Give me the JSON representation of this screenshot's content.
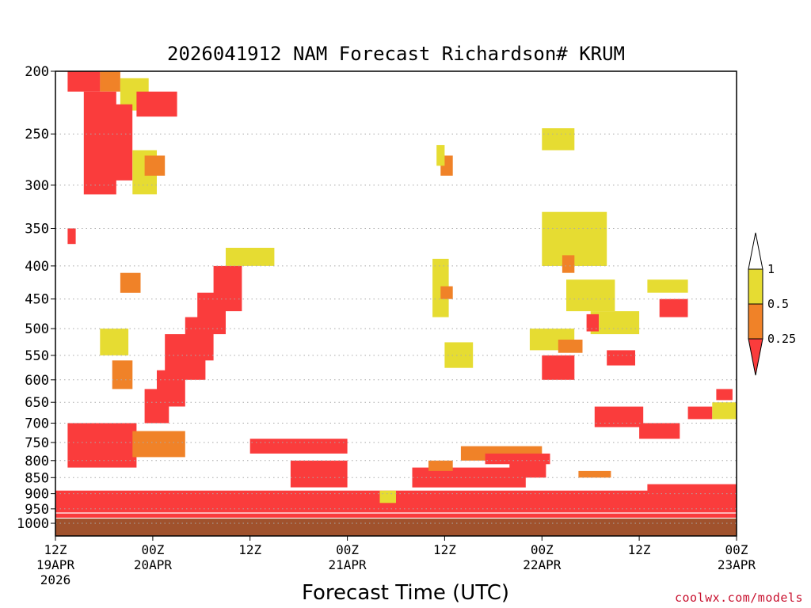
{
  "chart_data": {
    "type": "heatmap",
    "title": "2026041912 NAM Forecast Richardson# KRUM",
    "xlabel": "Forecast Time (UTC)",
    "ylabel": "",
    "y_ticks": [
      "200",
      "250",
      "300",
      "350",
      "400",
      "450",
      "500",
      "550",
      "600",
      "650",
      "700",
      "750",
      "800",
      "850",
      "900",
      "950",
      "1000"
    ],
    "y_scale": "log pressure (hPa), inverted",
    "ylim": [
      1000,
      200
    ],
    "x_ticks": [
      {
        "top": "12Z",
        "date": "19APR",
        "year": "2026",
        "hour": 0
      },
      {
        "top": "00Z",
        "date": "20APR",
        "year": "",
        "hour": 12
      },
      {
        "top": "12Z",
        "date": "",
        "year": "",
        "hour": 24
      },
      {
        "top": "00Z",
        "date": "21APR",
        "year": "",
        "hour": 36
      },
      {
        "top": "12Z",
        "date": "",
        "year": "",
        "hour": 48
      },
      {
        "top": "00Z",
        "date": "22APR",
        "year": "",
        "hour": 60
      },
      {
        "top": "12Z",
        "date": "",
        "year": "",
        "hour": 72
      },
      {
        "top": "00Z",
        "date": "23APR",
        "year": "",
        "hour": 84
      }
    ],
    "xlim": [
      0,
      84
    ],
    "x_unit": "forecast hours from 12Z 19APR 2026",
    "grid": "dotted at labelled pressure levels",
    "colorbar": {
      "labels": [
        "1",
        "0.5",
        "0.25"
      ],
      "bins": [
        {
          "range": "0.5-1",
          "color": "#e6dc32"
        },
        {
          "range": "0.25-0.5",
          "color": "#f08228"
        },
        {
          "range": "<0.25",
          "color": "#fa3c3c"
        }
      ]
    },
    "ground_color": "#a0522d",
    "regions": [
      {
        "hours": [
          1.5,
          5.5
        ],
        "p": [
          200,
          215
        ],
        "bin": "<0.25"
      },
      {
        "hours": [
          5.5,
          8
        ],
        "p": [
          200,
          215
        ],
        "bin": "0.25-0.5"
      },
      {
        "hours": [
          8,
          11.5
        ],
        "p": [
          205,
          230
        ],
        "bin": "0.5-1"
      },
      {
        "hours": [
          3.5,
          7.5
        ],
        "p": [
          215,
          310
        ],
        "bin": "<0.25"
      },
      {
        "hours": [
          6.5,
          9.5
        ],
        "p": [
          225,
          295
        ],
        "bin": "<0.25"
      },
      {
        "hours": [
          10,
          15
        ],
        "p": [
          215,
          235
        ],
        "bin": "<0.25"
      },
      {
        "hours": [
          9.5,
          12.5
        ],
        "p": [
          265,
          310
        ],
        "bin": "0.5-1"
      },
      {
        "hours": [
          11,
          13.5
        ],
        "p": [
          270,
          290
        ],
        "bin": "0.25-0.5"
      },
      {
        "hours": [
          1.5,
          2.5
        ],
        "p": [
          350,
          370
        ],
        "bin": "<0.25"
      },
      {
        "hours": [
          21,
          27
        ],
        "p": [
          375,
          400
        ],
        "bin": "0.5-1"
      },
      {
        "hours": [
          19.5,
          23
        ],
        "p": [
          400,
          470
        ],
        "bin": "<0.25"
      },
      {
        "hours": [
          17.5,
          21
        ],
        "p": [
          440,
          510
        ],
        "bin": "<0.25"
      },
      {
        "hours": [
          16,
          19.5
        ],
        "p": [
          480,
          560
        ],
        "bin": "<0.25"
      },
      {
        "hours": [
          13.5,
          18.5
        ],
        "p": [
          510,
          600
        ],
        "bin": "<0.25"
      },
      {
        "hours": [
          12.5,
          16
        ],
        "p": [
          580,
          660
        ],
        "bin": "<0.25"
      },
      {
        "hours": [
          11,
          14
        ],
        "p": [
          620,
          700
        ],
        "bin": "<0.25"
      },
      {
        "hours": [
          8,
          10.5
        ],
        "p": [
          410,
          440
        ],
        "bin": "0.25-0.5"
      },
      {
        "hours": [
          5.5,
          9
        ],
        "p": [
          500,
          550
        ],
        "bin": "0.5-1"
      },
      {
        "hours": [
          7,
          9.5
        ],
        "p": [
          560,
          620
        ],
        "bin": "0.25-0.5"
      },
      {
        "hours": [
          1.5,
          10
        ],
        "p": [
          700,
          820
        ],
        "bin": "<0.25"
      },
      {
        "hours": [
          9.5,
          16
        ],
        "p": [
          720,
          790
        ],
        "bin": "0.25-0.5"
      },
      {
        "hours": [
          0,
          84
        ],
        "p": [
          890,
          980
        ],
        "bin": "<0.25"
      },
      {
        "hours": [
          24,
          36
        ],
        "p": [
          740,
          780
        ],
        "bin": "<0.25"
      },
      {
        "hours": [
          29,
          36
        ],
        "p": [
          800,
          880
        ],
        "bin": "<0.25"
      },
      {
        "hours": [
          44,
          58
        ],
        "p": [
          820,
          880
        ],
        "bin": "<0.25"
      },
      {
        "hours": [
          50,
          60
        ],
        "p": [
          760,
          800
        ],
        "bin": "0.25-0.5"
      },
      {
        "hours": [
          46,
          49
        ],
        "p": [
          800,
          830
        ],
        "bin": "0.25-0.5"
      },
      {
        "hours": [
          40,
          42
        ],
        "p": [
          890,
          930
        ],
        "bin": "0.5-1"
      },
      {
        "hours": [
          47.5,
          49
        ],
        "p": [
          270,
          290
        ],
        "bin": "0.25-0.5"
      },
      {
        "hours": [
          47,
          48
        ],
        "p": [
          260,
          280
        ],
        "bin": "0.5-1"
      },
      {
        "hours": [
          46.5,
          48.5
        ],
        "p": [
          390,
          480
        ],
        "bin": "0.5-1"
      },
      {
        "hours": [
          47.5,
          49
        ],
        "p": [
          430,
          450
        ],
        "bin": "0.25-0.5"
      },
      {
        "hours": [
          48,
          51.5
        ],
        "p": [
          525,
          575
        ],
        "bin": "0.5-1"
      },
      {
        "hours": [
          60,
          64
        ],
        "p": [
          245,
          265
        ],
        "bin": "0.5-1"
      },
      {
        "hours": [
          60,
          68
        ],
        "p": [
          330,
          400
        ],
        "bin": "0.5-1"
      },
      {
        "hours": [
          62.5,
          64
        ],
        "p": [
          385,
          410
        ],
        "bin": "0.25-0.5"
      },
      {
        "hours": [
          63,
          69
        ],
        "p": [
          420,
          470
        ],
        "bin": "0.5-1"
      },
      {
        "hours": [
          66,
          72
        ],
        "p": [
          470,
          510
        ],
        "bin": "0.5-1"
      },
      {
        "hours": [
          65.5,
          67
        ],
        "p": [
          475,
          505
        ],
        "bin": "<0.25"
      },
      {
        "hours": [
          73,
          78
        ],
        "p": [
          420,
          440
        ],
        "bin": "0.5-1"
      },
      {
        "hours": [
          74.5,
          78
        ],
        "p": [
          450,
          480
        ],
        "bin": "<0.25"
      },
      {
        "hours": [
          58.5,
          64
        ],
        "p": [
          500,
          540
        ],
        "bin": "0.5-1"
      },
      {
        "hours": [
          62,
          65
        ],
        "p": [
          520,
          545
        ],
        "bin": "0.25-0.5"
      },
      {
        "hours": [
          60,
          64
        ],
        "p": [
          550,
          600
        ],
        "bin": "<0.25"
      },
      {
        "hours": [
          68,
          71.5
        ],
        "p": [
          540,
          570
        ],
        "bin": "<0.25"
      },
      {
        "hours": [
          66.5,
          72.5
        ],
        "p": [
          660,
          710
        ],
        "bin": "<0.25"
      },
      {
        "hours": [
          72,
          77
        ],
        "p": [
          700,
          740
        ],
        "bin": "<0.25"
      },
      {
        "hours": [
          53,
          61
        ],
        "p": [
          780,
          810
        ],
        "bin": "<0.25"
      },
      {
        "hours": [
          56,
          60.5
        ],
        "p": [
          800,
          850
        ],
        "bin": "<0.25"
      },
      {
        "hours": [
          64.5,
          68.5
        ],
        "p": [
          830,
          850
        ],
        "bin": "0.25-0.5"
      },
      {
        "hours": [
          78,
          81
        ],
        "p": [
          660,
          690
        ],
        "bin": "<0.25"
      },
      {
        "hours": [
          81,
          84
        ],
        "p": [
          650,
          690
        ],
        "bin": "0.5-1"
      },
      {
        "hours": [
          81.5,
          83.5
        ],
        "p": [
          620,
          645
        ],
        "bin": "<0.25"
      },
      {
        "hours": [
          73,
          84
        ],
        "p": [
          870,
          920
        ],
        "bin": "<0.25"
      }
    ]
  },
  "footer": {
    "watermark": "coolwx.com/models"
  },
  "colors": {
    "grid": "#aaaaaa",
    "axis": "#000000",
    "watermark": "#c8102e"
  }
}
